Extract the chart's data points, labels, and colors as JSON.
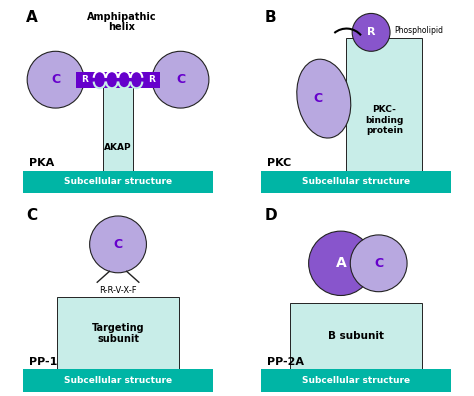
{
  "background_color": "#ffffff",
  "teal_color": "#00b5a5",
  "light_teal_box": "#c8ede8",
  "purple_dark": "#6600cc",
  "purple_light": "#b8a8e0",
  "purple_medium": "#8855cc",
  "outline_color": "#222222",
  "subcellular_text": "Subcellular structure",
  "panel_A": {
    "title": "Amphipathic\nhelix",
    "label": "PKA",
    "akap_label": "AKAP"
  },
  "panel_B": {
    "phospholipid_label": "Phospholipid",
    "pkc_binding_label": "PKC-\nbinding\nprotein",
    "label": "PKC"
  },
  "panel_C": {
    "rrvxf_label": "R-R-V-X-F",
    "targeting_label": "Targeting\nsubunit",
    "label": "PP-1",
    "C_label": "C"
  },
  "panel_D": {
    "b_subunit_label": "B subunit",
    "label": "PP-2A",
    "A_label": "A",
    "C_label": "C"
  }
}
